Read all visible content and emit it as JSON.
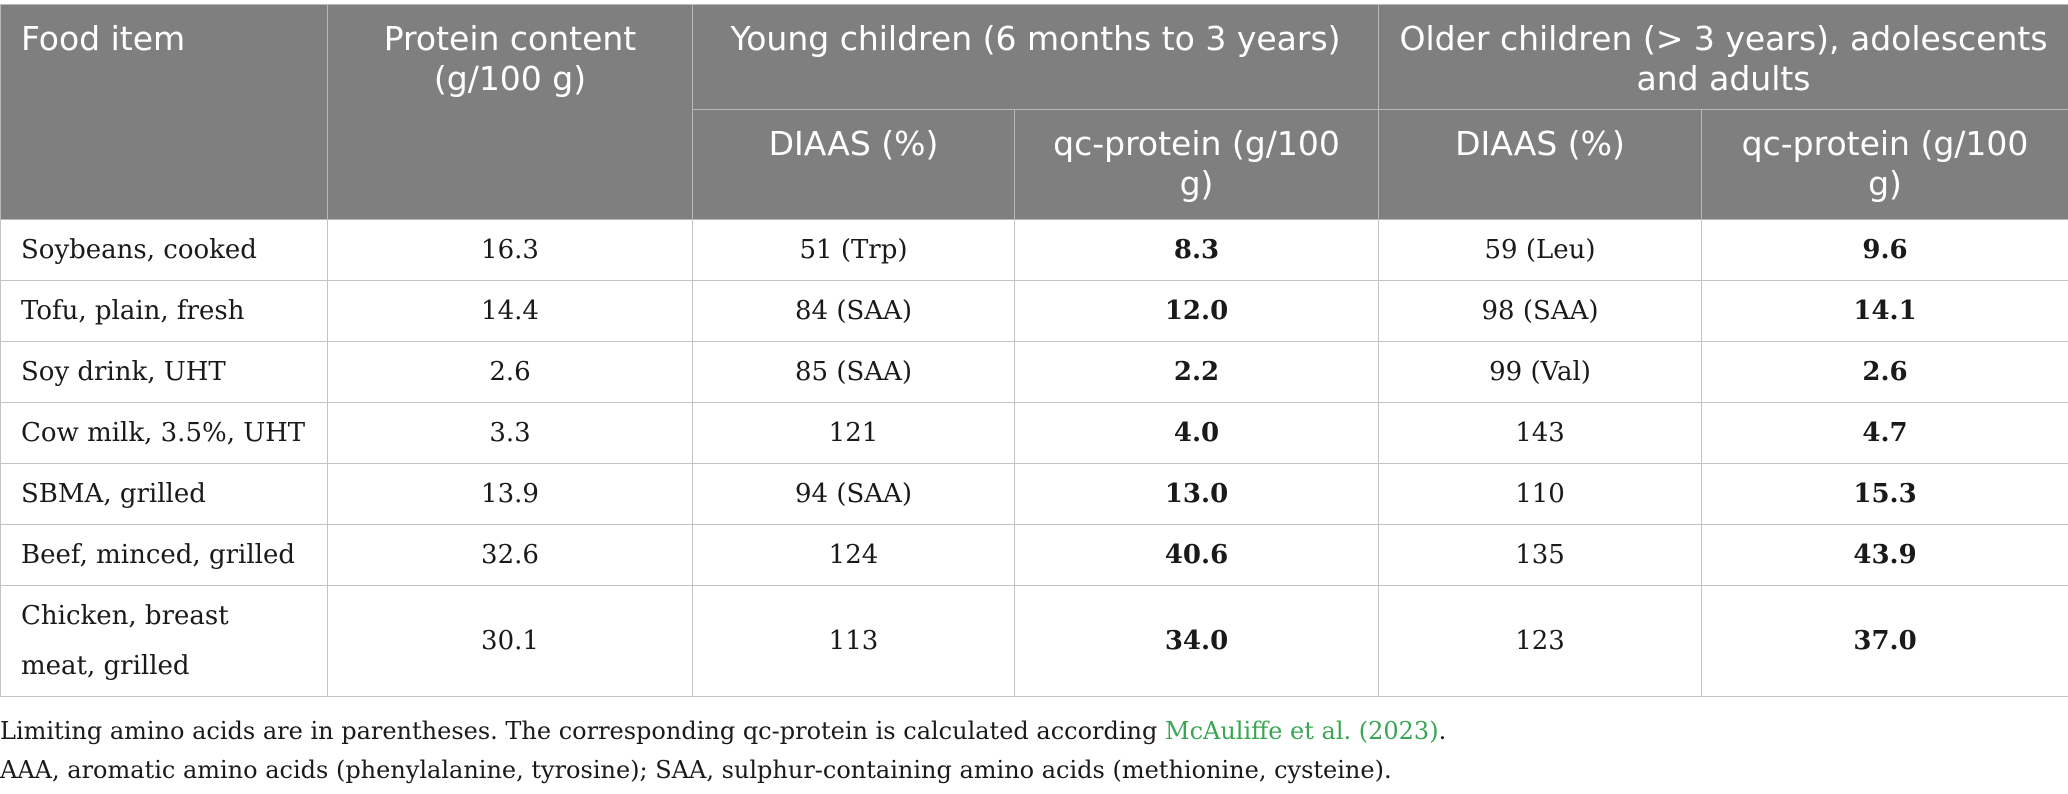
{
  "header": {
    "food_item": "Food item",
    "protein_content": "Protein content (g/100 g)",
    "young_group": "Young children (6 months to 3 years)",
    "older_group": "Older children (> 3 years), adolescents and adults",
    "diaas_young": "DIAAS (%)",
    "qc_young": "qc-protein (g/100 g)",
    "diaas_older": "DIAAS (%)",
    "qc_older": "qc-protein (g/100 g)"
  },
  "rows": [
    {
      "food": "Soybeans, cooked",
      "protein": "16.3",
      "diaas_young": "51 (Trp)",
      "qc_young": "8.3",
      "diaas_older": "59 (Leu)",
      "qc_older": "9.6"
    },
    {
      "food": "Tofu, plain, fresh",
      "protein": "14.4",
      "diaas_young": "84 (SAA)",
      "qc_young": "12.0",
      "diaas_older": "98 (SAA)",
      "qc_older": "14.1"
    },
    {
      "food": "Soy drink, UHT",
      "protein": "2.6",
      "diaas_young": "85 (SAA)",
      "qc_young": "2.2",
      "diaas_older": "99 (Val)",
      "qc_older": "2.6"
    },
    {
      "food": "Cow milk, 3.5%, UHT",
      "protein": "3.3",
      "diaas_young": "121",
      "qc_young": "4.0",
      "diaas_older": "143",
      "qc_older": "4.7"
    },
    {
      "food": "SBMA, grilled",
      "protein": "13.9",
      "diaas_young": "94 (SAA)",
      "qc_young": "13.0",
      "diaas_older": "110",
      "qc_older": "15.3"
    },
    {
      "food": "Beef, minced, grilled",
      "protein": "32.6",
      "diaas_young": "124",
      "qc_young": "40.6",
      "diaas_older": "135",
      "qc_older": "43.9"
    },
    {
      "food": "Chicken, breast meat, grilled",
      "protein": "30.1",
      "diaas_young": "113",
      "qc_young": "34.0",
      "diaas_older": "123",
      "qc_older": "37.0"
    }
  ],
  "notes": {
    "line1_prefix": "Limiting amino acids are in parentheses. The corresponding qc-protein is calculated according ",
    "line1_citation": "McAuliffe et al. (2023)",
    "line1_suffix": ".",
    "line2": "AAA, aromatic amino acids (phenylalanine, tyrosine); SAA, sulphur-containing amino acids (methionine, cysteine)."
  }
}
